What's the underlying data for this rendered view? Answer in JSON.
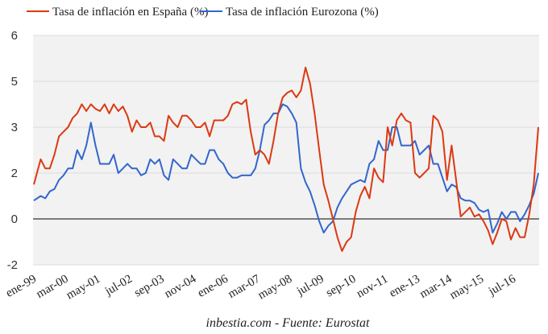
{
  "chart_data": {
    "type": "line",
    "title": "",
    "xlabel": "",
    "ylabel": "",
    "caption": "inbestia.com - Fuente: Eurostat",
    "legend_position": "top",
    "grid": true,
    "y_ticks": [
      6,
      5,
      3,
      2,
      0,
      -2
    ],
    "ylim": [
      -2,
      6
    ],
    "x_start": "ene-99",
    "x_end": "jun-17",
    "x_frequency": "monthly",
    "x_tick_labels": [
      "ene-99",
      "mar-00",
      "may-01",
      "jul-02",
      "sep-03",
      "nov-04",
      "ene-06",
      "mar-07",
      "may-08",
      "jul-09",
      "sep-10",
      "nov-11",
      "ene-13",
      "mar-14",
      "may-15",
      "jul-16"
    ],
    "series": [
      {
        "name": "Tasa de inflación en España (%)",
        "color": "#dc3912",
        "keyframes_month_index": [
          0,
          3,
          5,
          7,
          9,
          11,
          13,
          15,
          17,
          19,
          21,
          23,
          25,
          27,
          29,
          31,
          33,
          35,
          37,
          39,
          41,
          43,
          45,
          47,
          49,
          51,
          53,
          55,
          57,
          59,
          61,
          63,
          65,
          67,
          69,
          71,
          73,
          75,
          77,
          79,
          81,
          83,
          85,
          87,
          89,
          91,
          93,
          95,
          97,
          99,
          101,
          103,
          105,
          107,
          109,
          111,
          113,
          115,
          117,
          119,
          121,
          123,
          125,
          127,
          129,
          131,
          133,
          135,
          137,
          139,
          141,
          143,
          145,
          147,
          149,
          151,
          153,
          155,
          157,
          159,
          161,
          163,
          165,
          167,
          169,
          171,
          173,
          175,
          177,
          179,
          181,
          183,
          185,
          187,
          189,
          191,
          193,
          195,
          197,
          199,
          201,
          203,
          205,
          207,
          209,
          211,
          213,
          215,
          217,
          219,
          221
        ],
        "keyframes_values": [
          1.5,
          2.3,
          2.1,
          2.1,
          2.4,
          2.8,
          2.9,
          3.0,
          3.4,
          3.6,
          4.0,
          3.7,
          4.0,
          3.8,
          3.7,
          4.0,
          3.6,
          4.0,
          3.7,
          3.9,
          3.5,
          2.9,
          3.3,
          3.0,
          3.0,
          3.2,
          2.8,
          2.8,
          2.7,
          3.5,
          3.2,
          3.0,
          3.5,
          3.5,
          3.3,
          3.0,
          3.0,
          3.2,
          2.8,
          3.3,
          3.3,
          3.3,
          3.5,
          4.0,
          4.1,
          4.0,
          4.2,
          2.9,
          2.4,
          2.5,
          2.4,
          2.2,
          2.7,
          3.6,
          4.3,
          4.5,
          4.6,
          4.3,
          4.6,
          5.3,
          4.9,
          3.6,
          2.5,
          1.5,
          0.8,
          0.0,
          -0.8,
          -1.4,
          -1.0,
          -0.8,
          0.3,
          1.0,
          1.4,
          0.9,
          2.1,
          1.8,
          1.6,
          3.0,
          2.6,
          3.3,
          3.6,
          3.3,
          3.2,
          2.0,
          1.8,
          2.0,
          2.1,
          3.5,
          3.3,
          2.9,
          1.7,
          2.6,
          1.7,
          0.1,
          0.3,
          0.5,
          0.1,
          0.2,
          -0.1,
          -0.5,
          -1.1,
          -0.6,
          0.0,
          -0.1,
          -0.9,
          -0.4,
          -0.8,
          -0.8,
          0.2,
          1.5,
          3.0
        ]
      },
      {
        "name": "Tasa de inflación Eurozona (%)",
        "color": "#3366cc",
        "keyframes_month_index": [
          0,
          3,
          5,
          7,
          9,
          11,
          13,
          15,
          17,
          19,
          21,
          23,
          25,
          27,
          29,
          31,
          33,
          35,
          37,
          39,
          41,
          43,
          45,
          47,
          49,
          51,
          53,
          55,
          57,
          59,
          61,
          63,
          65,
          67,
          69,
          71,
          73,
          75,
          77,
          79,
          81,
          83,
          85,
          87,
          89,
          91,
          93,
          95,
          97,
          99,
          101,
          103,
          105,
          107,
          109,
          111,
          113,
          115,
          117,
          119,
          121,
          123,
          125,
          127,
          129,
          131,
          133,
          135,
          137,
          139,
          141,
          143,
          145,
          147,
          149,
          151,
          153,
          155,
          157,
          159,
          161,
          163,
          165,
          167,
          169,
          171,
          173,
          175,
          177,
          179,
          181,
          183,
          185,
          187,
          189,
          191,
          193,
          195,
          197,
          199,
          201,
          203,
          205,
          207,
          209,
          211,
          213,
          215,
          217,
          219,
          221
        ],
        "keyframes_values": [
          0.8,
          1.0,
          0.9,
          1.2,
          1.3,
          1.7,
          1.9,
          2.1,
          2.1,
          2.5,
          2.3,
          2.6,
          3.2,
          2.6,
          2.2,
          2.2,
          2.2,
          2.4,
          2.0,
          2.1,
          2.2,
          2.1,
          2.1,
          1.9,
          2.0,
          2.3,
          2.2,
          2.3,
          1.9,
          1.7,
          2.3,
          2.2,
          2.1,
          2.1,
          2.4,
          2.3,
          2.2,
          2.2,
          2.5,
          2.5,
          2.3,
          2.2,
          2.0,
          1.8,
          1.8,
          1.9,
          1.9,
          1.9,
          2.1,
          2.5,
          3.1,
          3.3,
          3.6,
          3.6,
          4.0,
          3.9,
          3.6,
          3.2,
          2.1,
          1.6,
          1.2,
          0.6,
          -0.1,
          -0.6,
          -0.3,
          -0.1,
          0.5,
          0.9,
          1.2,
          1.5,
          1.6,
          1.7,
          1.6,
          2.2,
          2.3,
          2.7,
          2.5,
          2.5,
          3.0,
          3.0,
          2.6,
          2.6,
          2.6,
          2.7,
          2.4,
          2.5,
          2.6,
          2.2,
          2.2,
          1.8,
          1.2,
          1.5,
          1.4,
          0.9,
          0.8,
          0.8,
          0.7,
          0.4,
          0.3,
          0.4,
          -0.6,
          -0.2,
          0.3,
          0.0,
          0.3,
          0.3,
          -0.1,
          0.2,
          0.6,
          1.1,
          2.0
        ]
      }
    ]
  }
}
